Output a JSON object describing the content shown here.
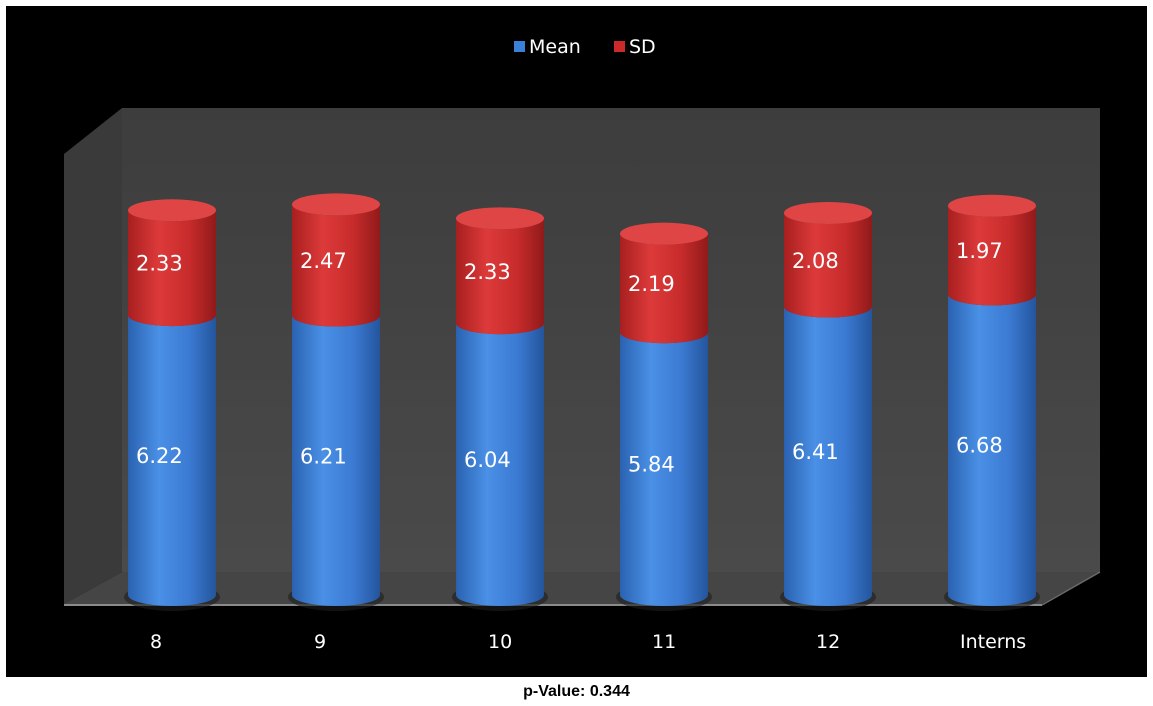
{
  "chart_data": {
    "type": "bar",
    "stacked": true,
    "style": "3d-cylinder",
    "categories": [
      "8",
      "9",
      "10",
      "11",
      "12",
      "Interns"
    ],
    "series": [
      {
        "name": "Mean",
        "values": [
          6.22,
          6.21,
          6.04,
          5.84,
          6.41,
          6.68
        ],
        "color": "#3a7fd8"
      },
      {
        "name": "SD",
        "values": [
          2.33,
          2.47,
          2.33,
          2.19,
          2.08,
          1.97
        ],
        "color": "#cc2a2a"
      }
    ],
    "legend": {
      "position": "top-center",
      "items": [
        "Mean",
        "SD"
      ]
    },
    "background": "#000000",
    "ylim": [
      0,
      10
    ],
    "grid": false
  },
  "caption": "p-Value: 0.344"
}
